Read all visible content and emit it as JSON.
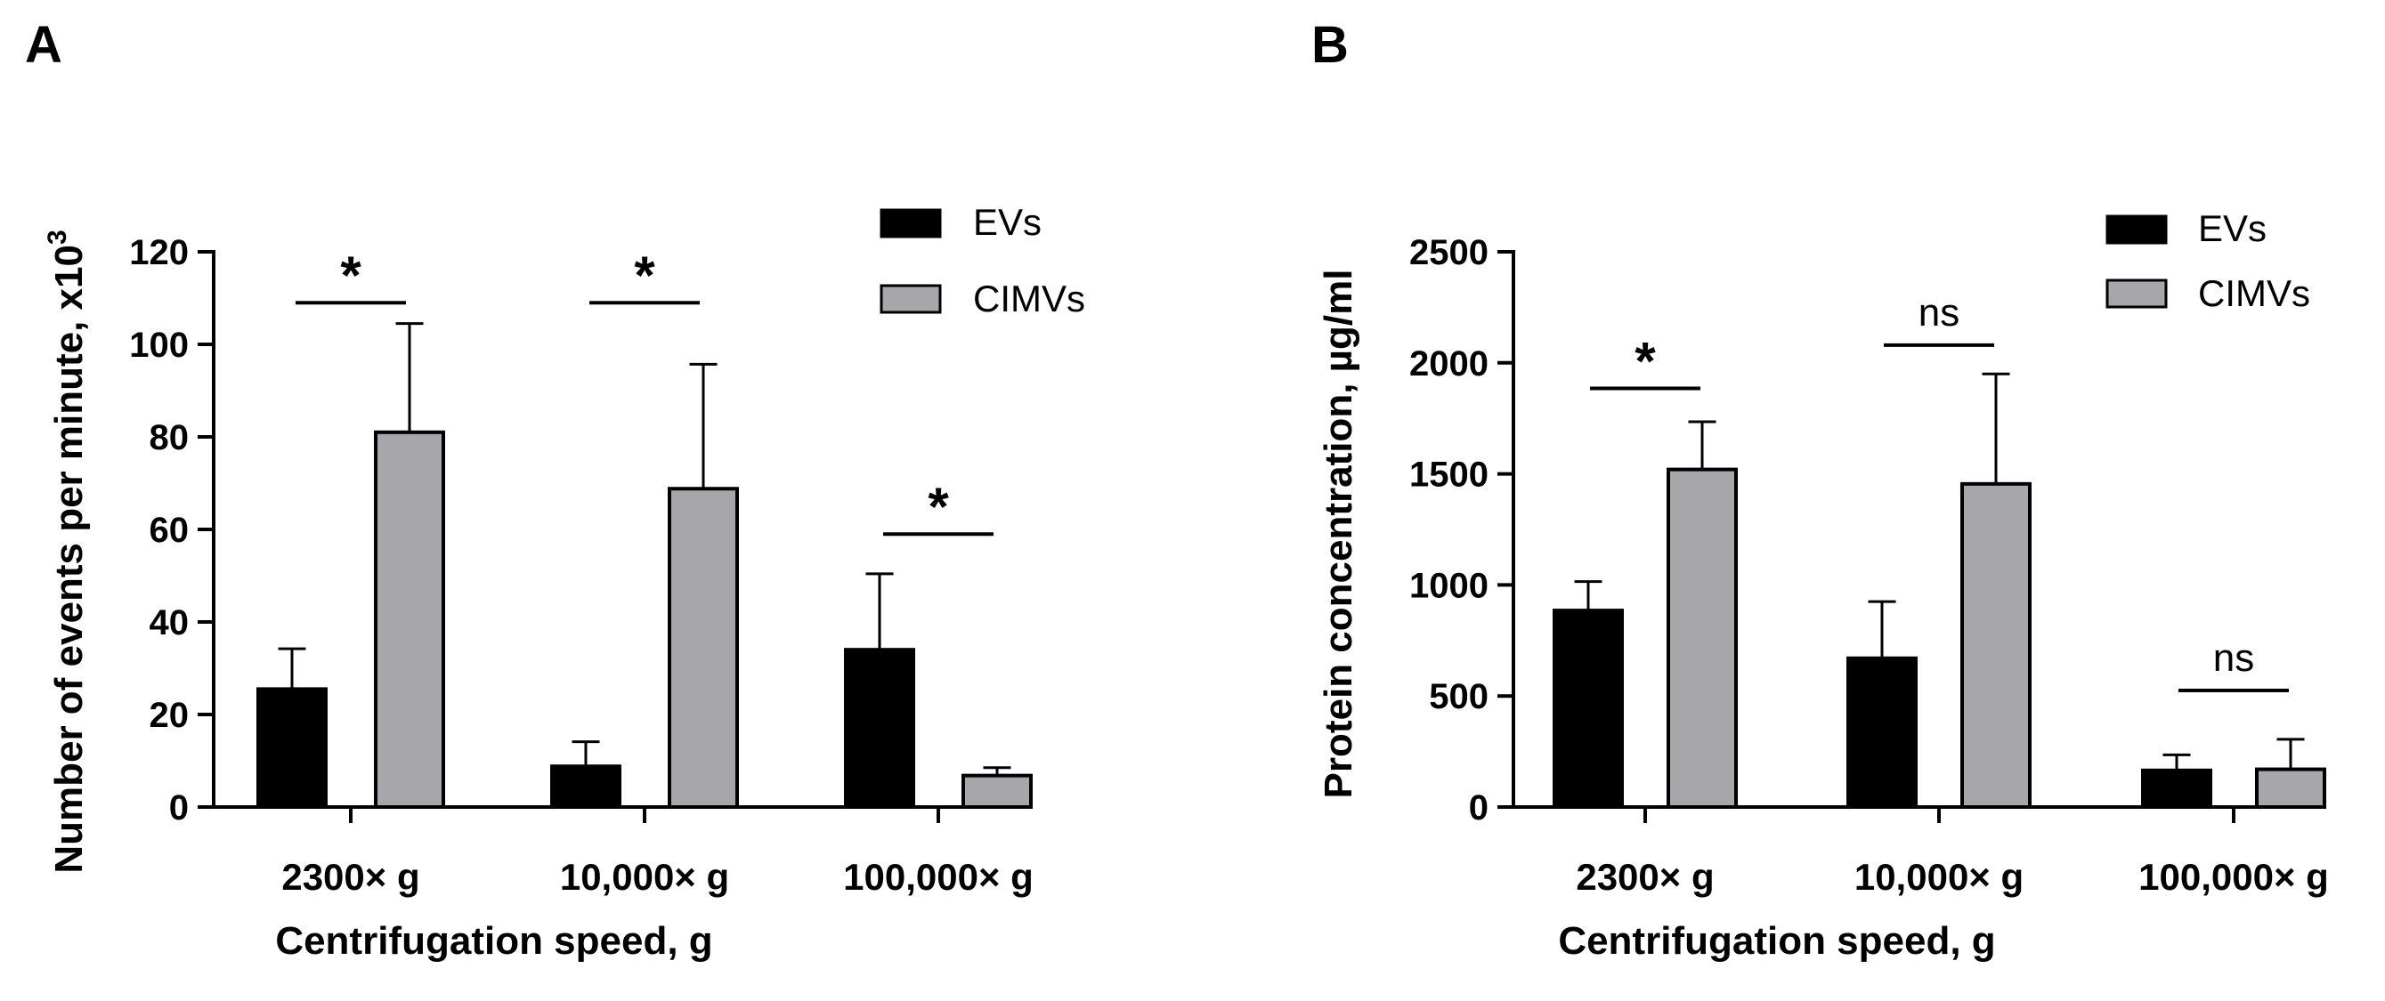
{
  "chart_data": [
    {
      "panel": "A",
      "type": "bar",
      "categories": [
        "2300× g",
        "10,000× g",
        "100,000× g"
      ],
      "series": [
        {
          "name": "EVs",
          "color": "#000000",
          "values": [
            25.5,
            8.8,
            34
          ],
          "errors": [
            8.7,
            5.3,
            16.4
          ]
        },
        {
          "name": "CIMVs",
          "color": "#a6a6ab",
          "values": [
            81,
            68.8,
            6.8
          ],
          "errors": [
            23.5,
            26.9,
            1.7
          ]
        }
      ],
      "significance": [
        {
          "category": "2300× g",
          "label": "*",
          "y": 109
        },
        {
          "category": "10,000× g",
          "label": "*",
          "y": 109
        },
        {
          "category": "100,000× g",
          "label": "*",
          "y": 59
        }
      ],
      "xlabel": "Centrifugation speed, g",
      "ylabel": "Number of events per minute, x10",
      "ylabel_sup": "3",
      "ylim": [
        0,
        120
      ],
      "yticks": [
        0,
        20,
        40,
        60,
        80,
        100,
        120
      ]
    },
    {
      "panel": "B",
      "type": "bar",
      "categories": [
        "2300× g",
        "10,000× g",
        "100,000× g"
      ],
      "series": [
        {
          "name": "EVs",
          "color": "#000000",
          "values": [
            885,
            670,
            165
          ],
          "errors": [
            130,
            255,
            70
          ]
        },
        {
          "name": "CIMVs",
          "color": "#a6a6ab",
          "values": [
            1520,
            1455,
            170
          ],
          "errors": [
            215,
            495,
            135
          ]
        }
      ],
      "significance": [
        {
          "category": "2300× g",
          "label": "*",
          "y": 1885
        },
        {
          "category": "10,000× g",
          "label": "ns",
          "y": 2080
        },
        {
          "category": "100,000× g",
          "label": "ns",
          "y": 525
        }
      ],
      "xlabel": "Centrifugation speed, g",
      "ylabel": "Protein concentration, µg/ml",
      "ylabel_sup": "",
      "ylim": [
        0,
        2500
      ],
      "yticks": [
        0,
        500,
        1000,
        1500,
        2000,
        2500
      ]
    }
  ]
}
